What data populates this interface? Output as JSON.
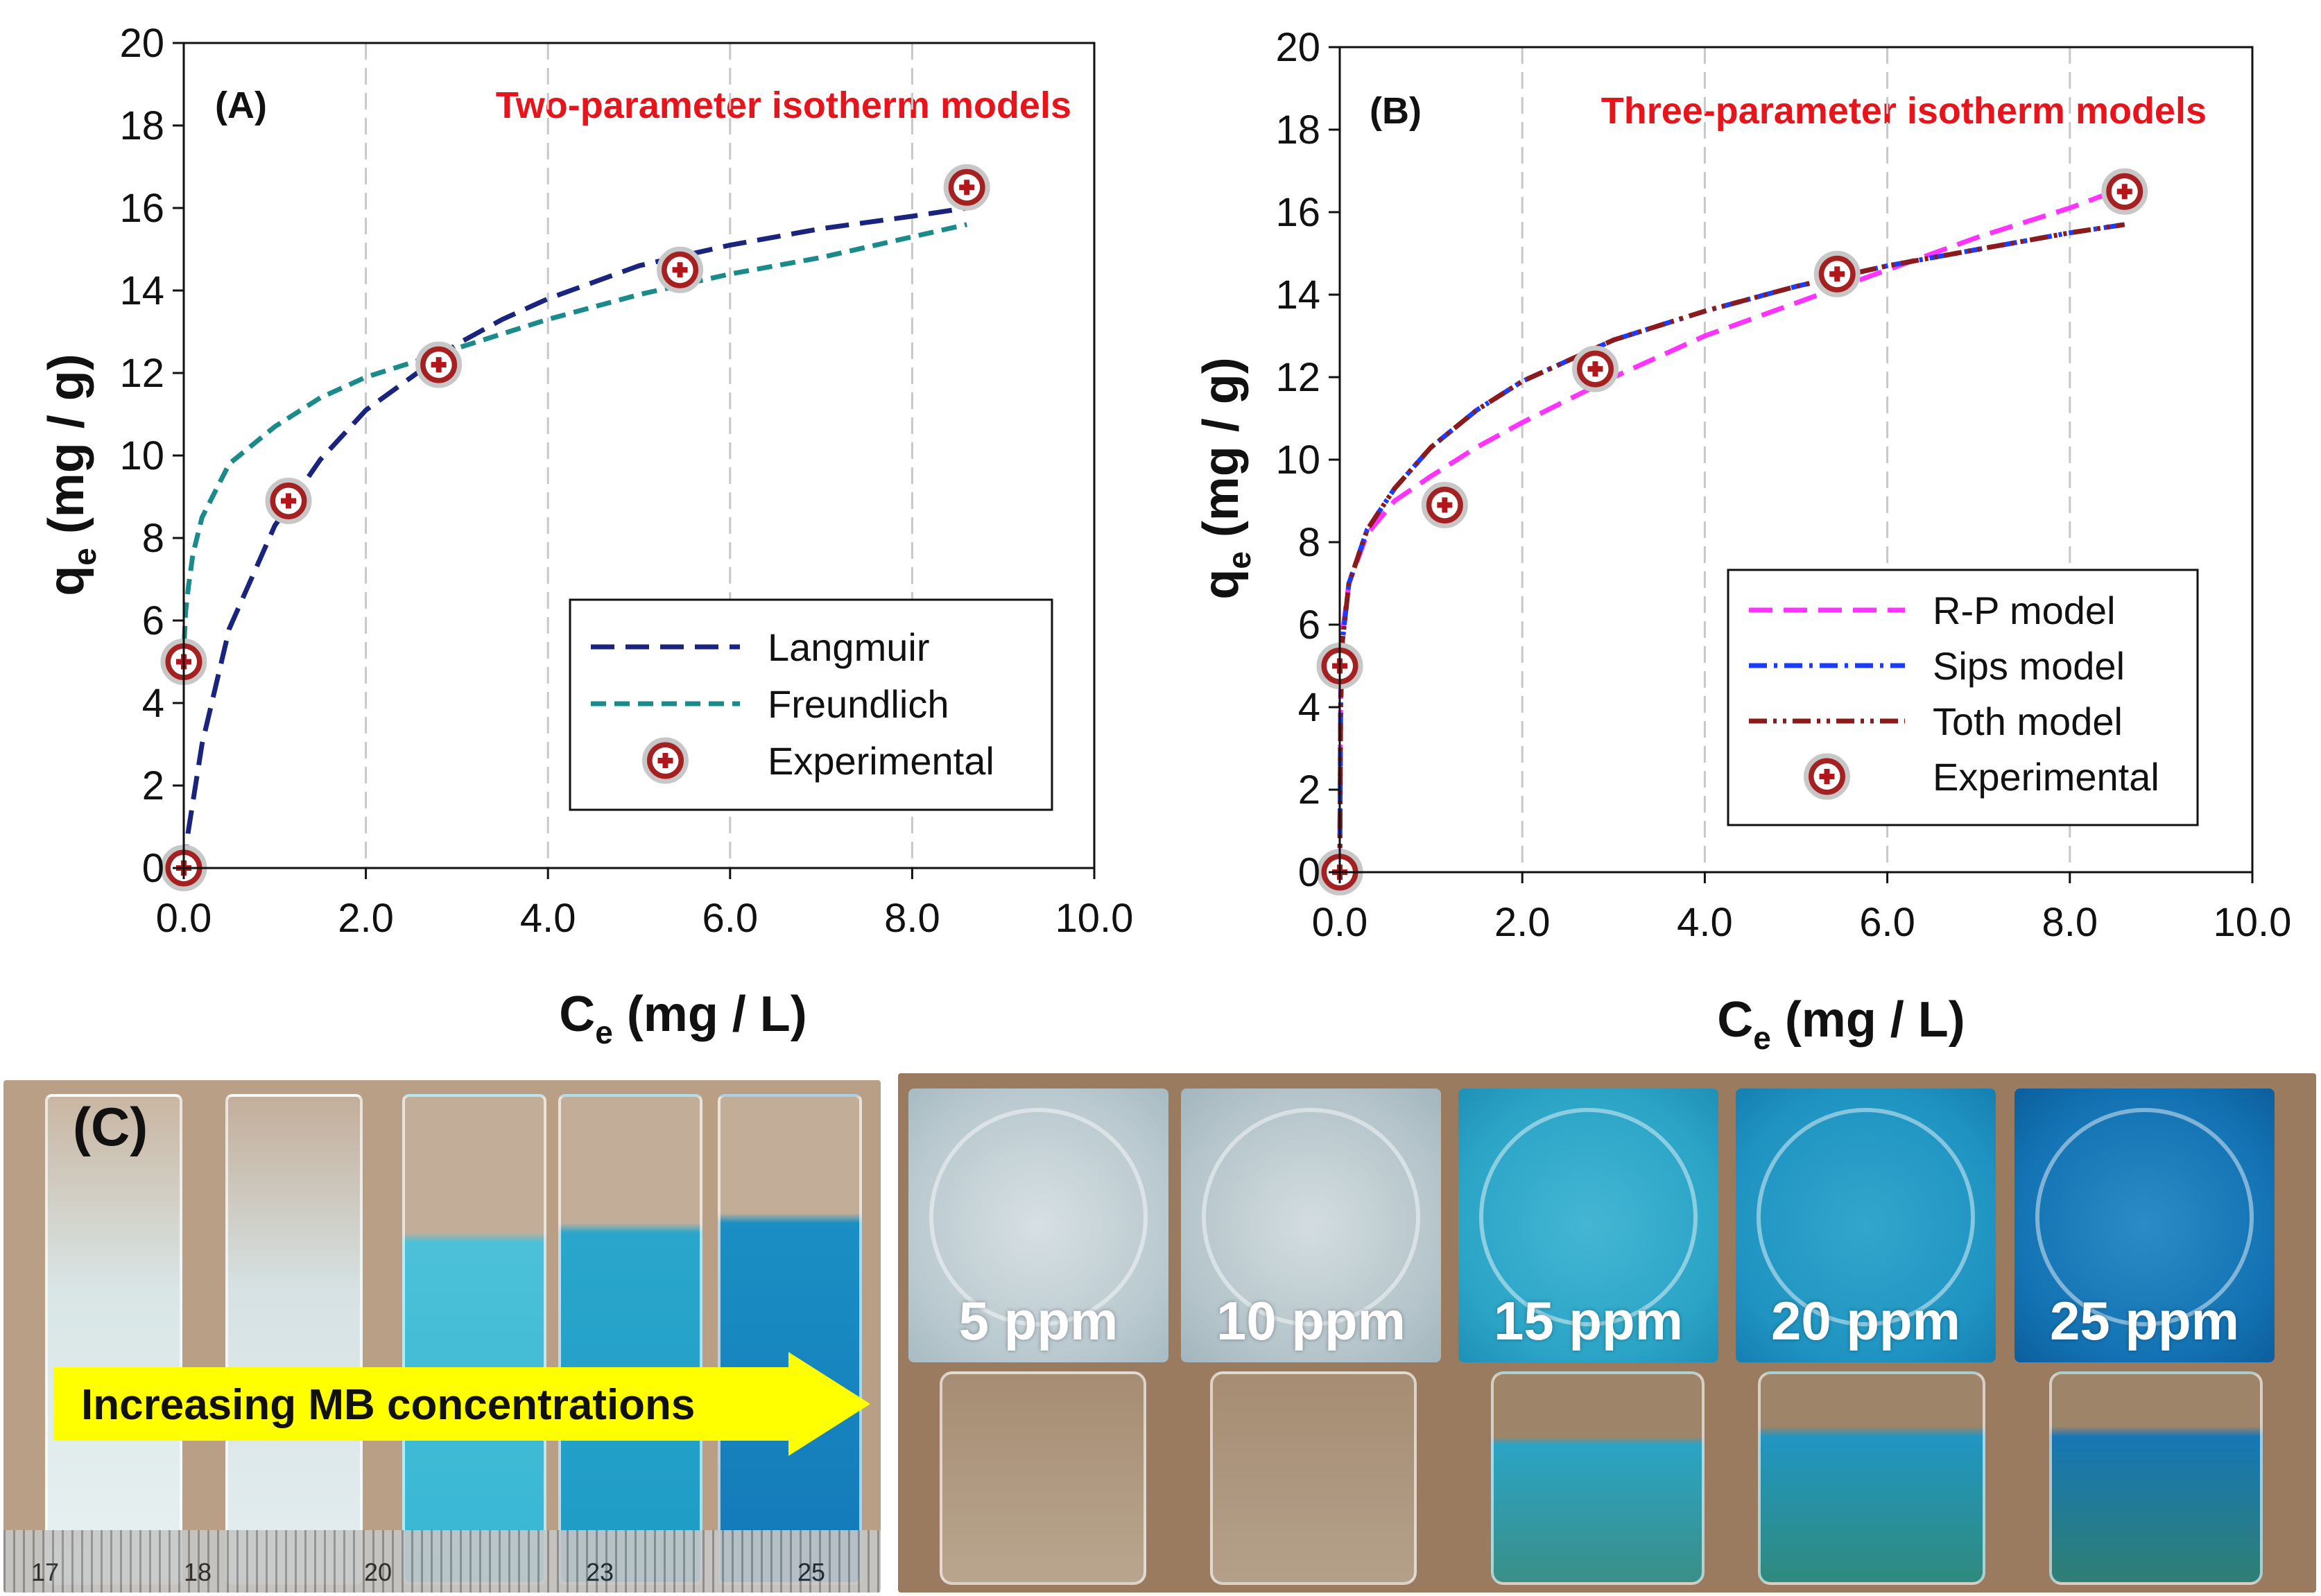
{
  "chart_data": [
    {
      "type": "line",
      "panel_label": "(A)",
      "title": "Two-parameter isotherm models",
      "xlabel": "C",
      "xlabel_sub": "e",
      "xlabel_unit": " (mg / L)",
      "ylabel": "q",
      "ylabel_sub": "e",
      "ylabel_unit": " (mg / g)",
      "xlim": [
        0,
        10
      ],
      "ylim": [
        0,
        20
      ],
      "xticks": [
        "0.0",
        "2.0",
        "4.0",
        "6.0",
        "8.0",
        "10.0"
      ],
      "yticks": [
        "0",
        "2",
        "4",
        "6",
        "8",
        "10",
        "12",
        "14",
        "16",
        "18",
        "20"
      ],
      "grid": "vertical dashed",
      "legend_position": "bottom-right",
      "series": [
        {
          "name": "Langmuir",
          "style": "long-dash",
          "color": "#1a237e",
          "x": [
            0,
            0.05,
            0.2,
            0.5,
            1.0,
            1.5,
            2.0,
            2.5,
            3.0,
            3.5,
            4.0,
            5.0,
            6.0,
            7.0,
            8.0,
            8.6
          ],
          "y": [
            0,
            0.9,
            3.0,
            5.8,
            8.3,
            9.9,
            11.1,
            11.9,
            12.7,
            13.3,
            13.8,
            14.6,
            15.1,
            15.5,
            15.8,
            16.0
          ]
        },
        {
          "name": "Freundlich",
          "style": "dash",
          "color": "#1b8a8a",
          "x": [
            0.005,
            0.02,
            0.05,
            0.1,
            0.2,
            0.5,
            1.0,
            1.5,
            2.0,
            3.0,
            4.0,
            5.0,
            6.0,
            7.0,
            8.0,
            8.6
          ],
          "y": [
            5.5,
            6.2,
            6.8,
            7.6,
            8.5,
            9.8,
            10.7,
            11.4,
            11.9,
            12.6,
            13.3,
            13.9,
            14.4,
            14.8,
            15.3,
            15.6
          ]
        },
        {
          "name": "Experimental",
          "style": "marker",
          "x": [
            0.0,
            0.0,
            1.15,
            2.8,
            5.45,
            8.6
          ],
          "y": [
            0.0,
            5.0,
            8.9,
            12.2,
            14.5,
            16.5
          ]
        }
      ]
    },
    {
      "type": "line",
      "panel_label": "(B)",
      "title": "Three-parameter isotherm models",
      "xlabel": "C",
      "xlabel_sub": "e",
      "xlabel_unit": " (mg / L)",
      "ylabel": "q",
      "ylabel_sub": "e",
      "ylabel_unit": " (mg / g)",
      "xlim": [
        0,
        10
      ],
      "ylim": [
        0,
        20
      ],
      "xticks": [
        "0.0",
        "2.0",
        "4.0",
        "6.0",
        "8.0",
        "10.0"
      ],
      "yticks": [
        "0",
        "2",
        "4",
        "6",
        "8",
        "10",
        "12",
        "14",
        "16",
        "18",
        "20"
      ],
      "grid": "vertical dashed",
      "legend_position": "bottom-right",
      "series": [
        {
          "name": "R-P model",
          "style": "long-dash",
          "color": "#ff33ff",
          "x": [
            0,
            0.01,
            0.03,
            0.1,
            0.3,
            0.6,
            1.0,
            1.5,
            2.0,
            3.0,
            4.0,
            5.0,
            6.0,
            7.0,
            8.0,
            8.6
          ],
          "y": [
            0,
            4.5,
            5.8,
            7.0,
            8.2,
            9.0,
            9.6,
            10.3,
            10.9,
            12.0,
            13.0,
            13.8,
            14.6,
            15.4,
            16.1,
            16.6
          ]
        },
        {
          "name": "Sips model",
          "style": "dash-dot",
          "color": "#1a3cff",
          "x": [
            0,
            0.01,
            0.03,
            0.1,
            0.3,
            0.6,
            1.0,
            1.5,
            2.0,
            3.0,
            4.0,
            5.0,
            6.0,
            7.0,
            8.0,
            8.6
          ],
          "y": [
            0,
            4.0,
            5.6,
            7.0,
            8.3,
            9.3,
            10.3,
            11.2,
            11.9,
            12.9,
            13.6,
            14.2,
            14.7,
            15.1,
            15.5,
            15.7
          ]
        },
        {
          "name": "Toth model",
          "style": "dash-dot-dot",
          "color": "#8b1a1a",
          "x": [
            0,
            0.01,
            0.03,
            0.1,
            0.3,
            0.6,
            1.0,
            1.5,
            2.0,
            3.0,
            4.0,
            5.0,
            6.0,
            7.0,
            8.0,
            8.6
          ],
          "y": [
            0,
            4.0,
            5.6,
            7.0,
            8.3,
            9.3,
            10.3,
            11.2,
            11.9,
            12.9,
            13.6,
            14.2,
            14.7,
            15.1,
            15.5,
            15.7
          ]
        },
        {
          "name": "Experimental",
          "style": "marker",
          "x": [
            0.0,
            0.0,
            1.15,
            2.8,
            5.45,
            8.6
          ],
          "y": [
            0.0,
            5.0,
            8.9,
            12.2,
            14.5,
            16.5
          ]
        }
      ]
    }
  ],
  "photo": {
    "panel_label": "(C)",
    "arrow_text": "Increasing MB concentrations",
    "concentrations": [
      "5 ppm",
      "10 ppm",
      "15 ppm",
      "20 ppm",
      "25 ppm"
    ],
    "ruler_ticks": [
      "17",
      "18",
      "20",
      "23",
      "25"
    ],
    "colors": {
      "arrow": "#ffff00",
      "solution_light": "#cfe6ea",
      "solution_dark": "#1a9fc4",
      "dish_5": "#b9c9cf",
      "dish_10": "#b4c4ca",
      "dish_15": "#2ba4c6",
      "dish_20": "#1f94c2",
      "dish_25": "#1372b3"
    }
  }
}
